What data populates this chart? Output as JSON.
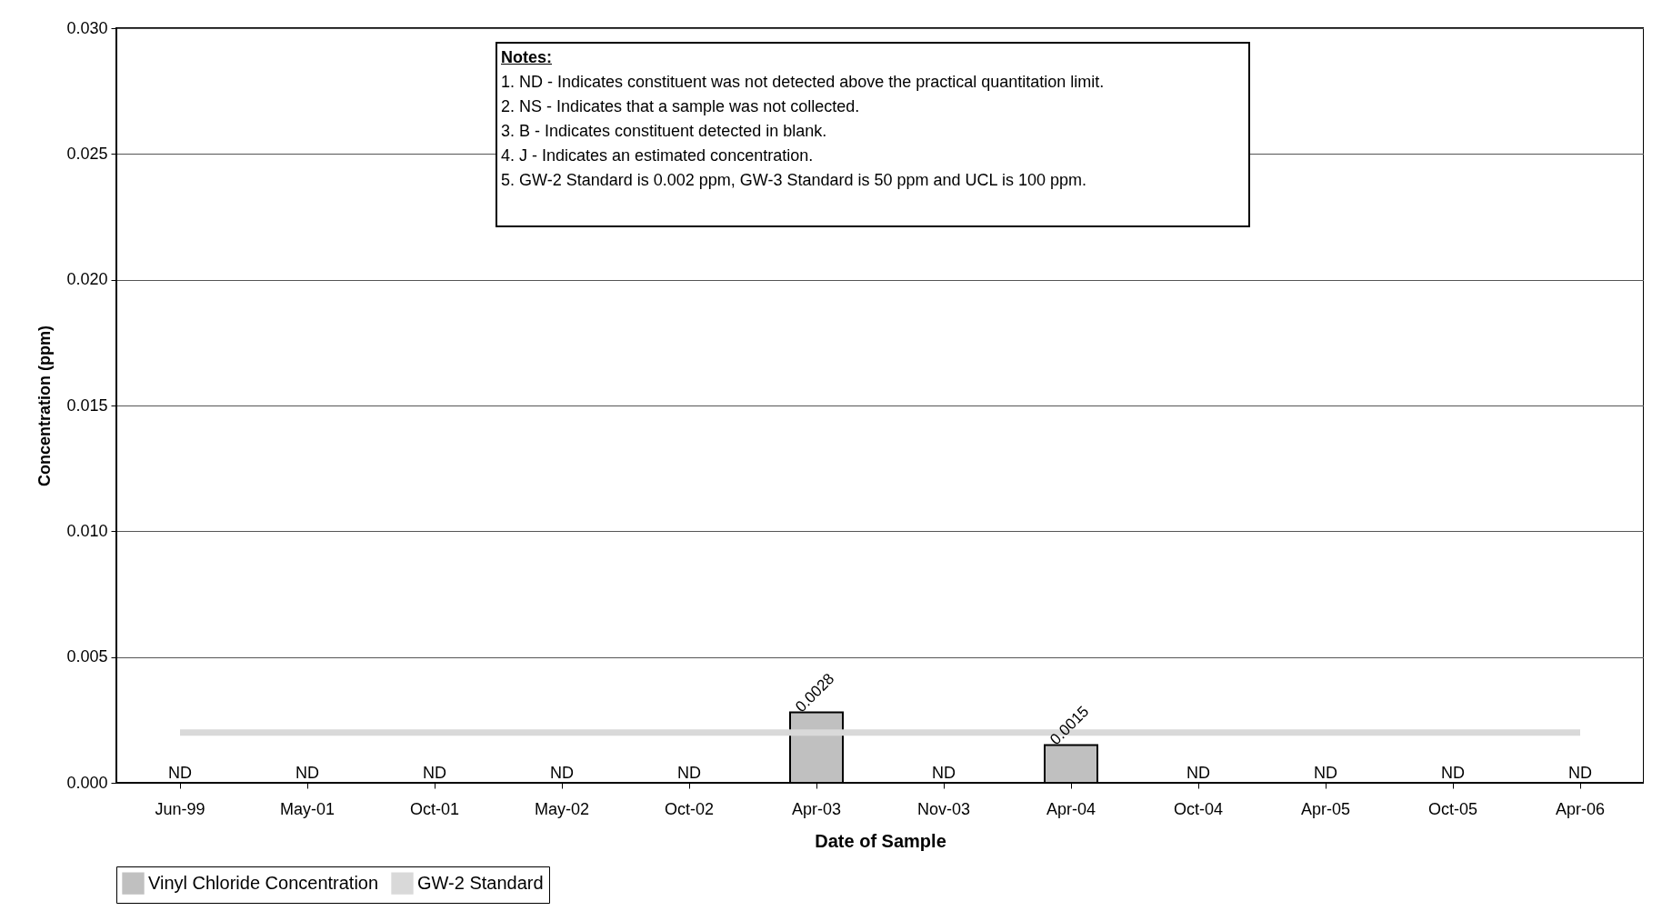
{
  "chart_data": {
    "type": "bar",
    "xlabel": "Date of Sample",
    "ylabel": "Concentration (ppm)",
    "categories": [
      "Jun-99",
      "May-01",
      "Oct-01",
      "May-02",
      "Oct-02",
      "Apr-03",
      "Nov-03",
      "Apr-04",
      "Oct-04",
      "Apr-05",
      "Oct-05",
      "Apr-06"
    ],
    "series": [
      {
        "name": "Vinyl Chloride Concentration",
        "color": "#c0c0c0",
        "values": [
          null,
          null,
          null,
          null,
          null,
          0.0028,
          null,
          0.0015,
          null,
          null,
          null,
          null
        ],
        "value_labels": [
          "ND",
          "ND",
          "ND",
          "ND",
          "ND",
          "0.0028",
          "ND",
          "0.0015",
          "ND",
          "ND",
          "ND",
          "ND"
        ]
      },
      {
        "name": "GW-2 Standard",
        "type": "line",
        "color": "#d9d9d9",
        "values": [
          0.002,
          0.002,
          0.002,
          0.002,
          0.002,
          0.002,
          0.002,
          0.002,
          0.002,
          0.002,
          0.002,
          0.002
        ]
      }
    ],
    "ylim": [
      0,
      0.03
    ],
    "yticks": [
      {
        "value": 0,
        "label": "0.000"
      },
      {
        "value": 0.005,
        "label": "0.005"
      },
      {
        "value": 0.01,
        "label": "0.010"
      },
      {
        "value": 0.015,
        "label": "0.015"
      },
      {
        "value": 0.02,
        "label": "0.020"
      },
      {
        "value": 0.025,
        "label": "0.025"
      },
      {
        "value": 0.03,
        "label": "0.030"
      }
    ],
    "grid": "y",
    "legend": "bottom",
    "annotations": [
      "Notes:",
      "1. ND - Indicates constituent was not detected above the practical quantitation limit.",
      "2. NS - Indicates that a sample was not collected.",
      "3. B - Indicates constituent detected in blank.",
      "4. J - Indicates an estimated concentration.",
      "5. GW-2 Standard is 0.002 ppm, GW-3 Standard is 50 ppm and UCL is 100 ppm."
    ]
  }
}
